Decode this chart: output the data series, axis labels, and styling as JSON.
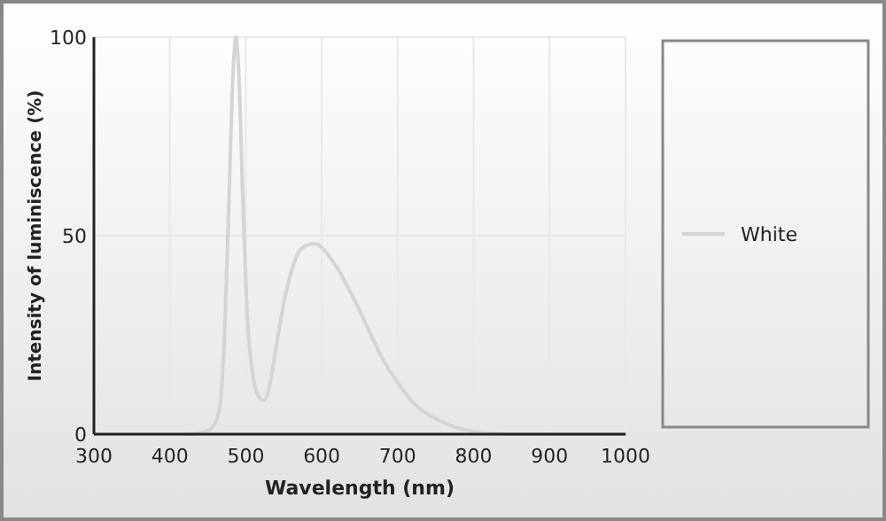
{
  "chart_data": {
    "type": "line",
    "xlabel": "Wavelength (nm)",
    "ylabel": "Intensity of luminiscence (%)",
    "xlim": [
      300,
      1000
    ],
    "xticks": [
      300,
      400,
      500,
      600,
      700,
      800,
      900,
      1000
    ],
    "ylim": [
      0,
      100
    ],
    "yticks": [
      0,
      50,
      100
    ],
    "grid": true,
    "legend": "right",
    "line_style": "solid",
    "marker": "none",
    "series": [
      {
        "name": "White",
        "color": "#d4d4d4",
        "x": [
          420,
          440,
          455,
          465,
          472,
          478,
          483,
          487,
          491,
          496,
          502,
          510,
          517,
          523,
          530,
          540,
          550,
          560,
          570,
          580,
          592,
          600,
          620,
          640,
          660,
          680,
          700,
          720,
          740,
          760,
          780,
          800,
          820,
          850,
          1000
        ],
        "values": [
          0,
          0.3,
          1.5,
          6,
          25,
          60,
          90,
          100,
          90,
          60,
          30,
          14,
          9.5,
          8.5,
          11,
          22,
          33,
          41,
          46,
          47.5,
          48,
          47,
          42,
          35,
          27,
          19,
          13,
          8,
          5,
          3,
          1.5,
          0.7,
          0.2,
          0,
          0
        ]
      }
    ]
  }
}
